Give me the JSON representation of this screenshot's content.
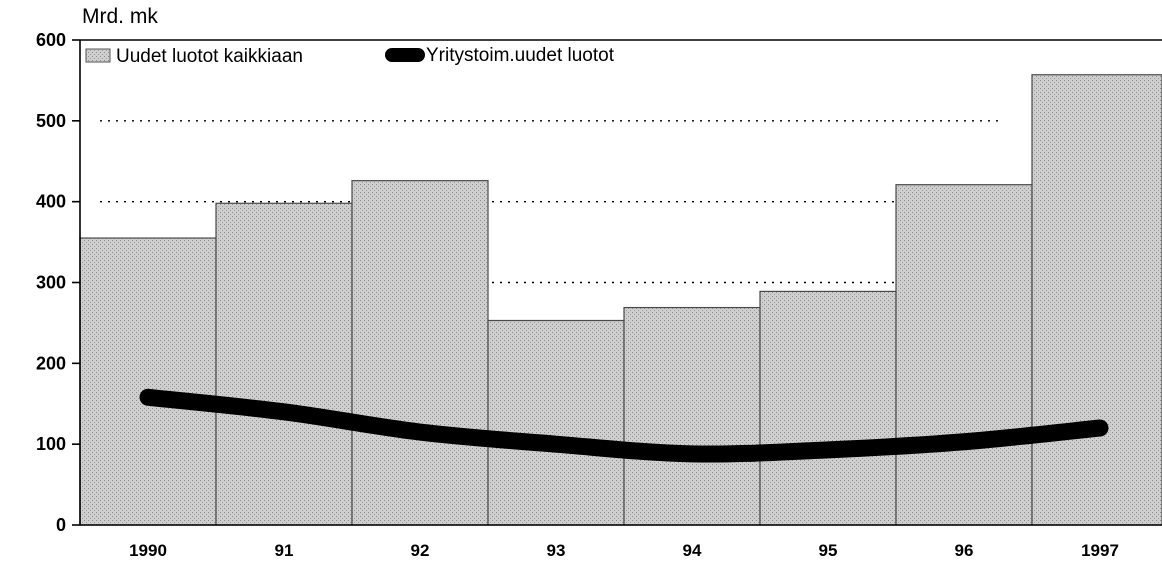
{
  "chart_data": {
    "type": "bar",
    "y_unit_label": "Mrd. mk",
    "categories": [
      "1990",
      "91",
      "92",
      "93",
      "94",
      "95",
      "96",
      "1997"
    ],
    "ylim": [
      0,
      600
    ],
    "yticks": [
      0,
      100,
      200,
      300,
      400,
      500,
      600
    ],
    "grid": "dotted horizontal at 300, 400, 500",
    "legend_placement": "top-left",
    "series": [
      {
        "name": "Uudet luotot kaikkiaan",
        "kind": "bar",
        "color": "#c4c4c4",
        "values": [
          355,
          398,
          426,
          253,
          269,
          289,
          421,
          557
        ]
      },
      {
        "name": "Yritystoim.uudet luotot",
        "kind": "line",
        "color": "#000000",
        "values": [
          158,
          140,
          115,
          100,
          88,
          93,
          103,
          120
        ]
      }
    ]
  }
}
